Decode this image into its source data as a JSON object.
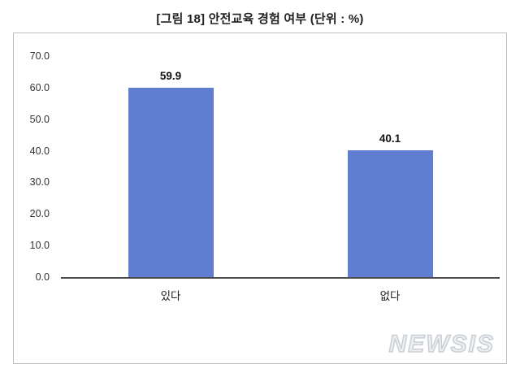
{
  "title": "[그림 18] 안전교육 경험 여부 (단위 : %)",
  "watermark": "NEWSIS",
  "chart_data": {
    "type": "bar",
    "title": "[그림 18] 안전교육 경험 여부 (단위 : %)",
    "categories": [
      "있다",
      "없다"
    ],
    "values": [
      59.9,
      40.1
    ],
    "data_labels": [
      "59.9",
      "40.1"
    ],
    "xlabel": "",
    "ylabel": "",
    "ylim": [
      0,
      70
    ],
    "ytick_step": 10,
    "ytick_labels": [
      "0.0",
      "10.0",
      "20.0",
      "30.0",
      "40.0",
      "50.0",
      "60.0",
      "70.0"
    ],
    "grid": false,
    "legend": false,
    "bar_color": "#5f7ed1",
    "axis_color": "#4a4a4a",
    "frame_border_color": "#bdbdbd"
  }
}
